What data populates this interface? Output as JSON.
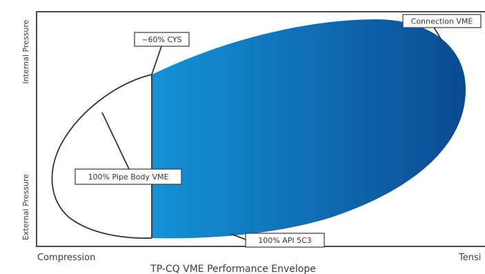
{
  "figure": {
    "caption": "TP-CQ VME Performance Envelope",
    "axes": {
      "y_upper_label": "Internal Pressure",
      "y_lower_label": "External Pressure",
      "x_left_label": "Compression",
      "x_right_label": "Tensi"
    },
    "callouts": {
      "connection_vme": "Connection VME",
      "cys": "~60% CYS",
      "pipe_body_vme": "100% Pipe Body VME",
      "api_5c3": "100% API 5C3"
    },
    "colors": {
      "gradient_start": "#1592d6",
      "gradient_end": "#0b4a92",
      "outline": "#333333"
    }
  }
}
